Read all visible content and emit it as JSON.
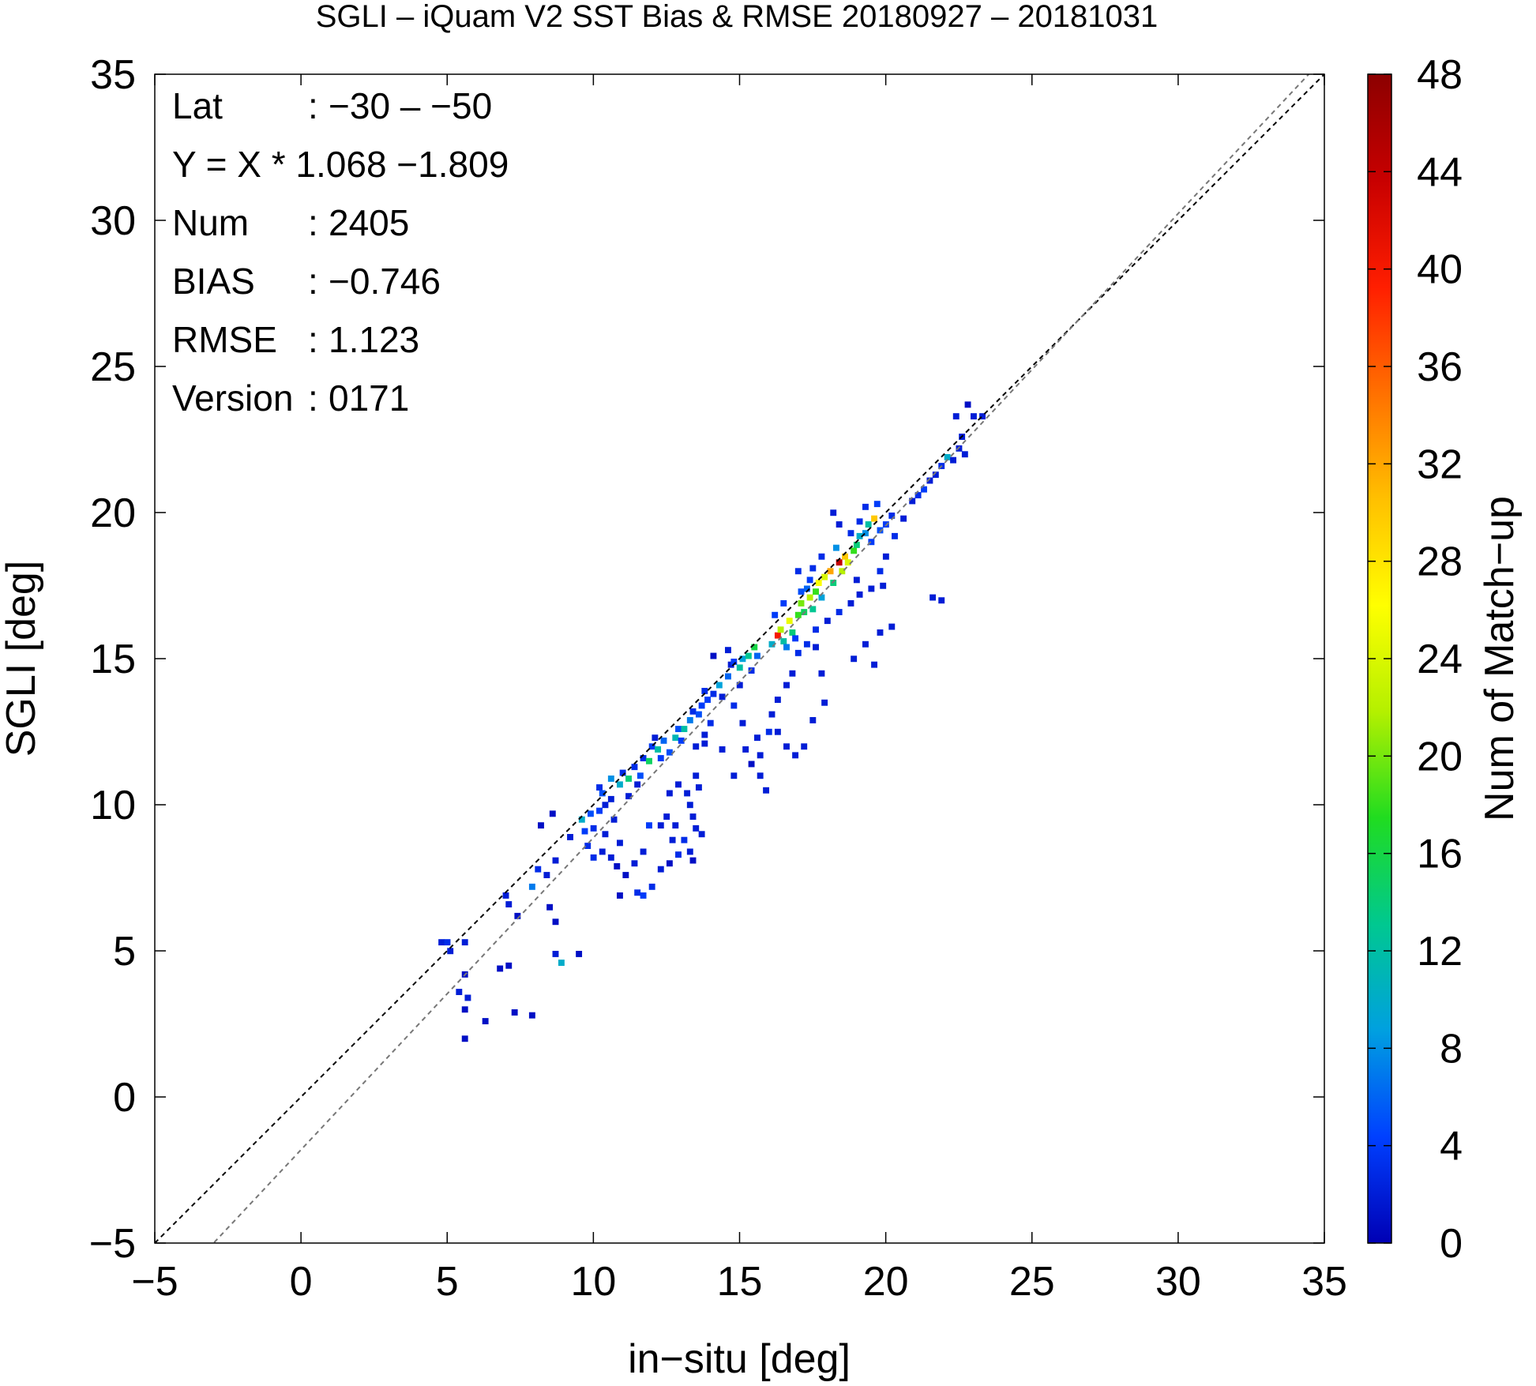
{
  "chart_data": {
    "type": "heatmap",
    "title": "SGLI – iQuam V2 SST Bias & RMSE 20180927 – 20181031",
    "xlabel": "in−situ [deg]",
    "ylabel": "SGLI [deg]",
    "xlim": [
      -5,
      35
    ],
    "ylim": [
      -5,
      35
    ],
    "xticks": [
      "−5",
      "0",
      "5",
      "10",
      "15",
      "20",
      "25",
      "30",
      "35"
    ],
    "yticks": [
      "−5",
      "0",
      "5",
      "10",
      "15",
      "20",
      "25",
      "30",
      "35"
    ],
    "grid": false,
    "reference_lines": [
      {
        "slope": 1.0,
        "intercept": 0.0,
        "color": "#000000",
        "style": "dashed"
      },
      {
        "slope": 1.068,
        "intercept": -1.809,
        "color": "#777777",
        "style": "dashed"
      }
    ],
    "colorbar": {
      "label": "Num of Match−up",
      "range": [
        0,
        48
      ],
      "ticks": [
        "0",
        "4",
        "8",
        "12",
        "16",
        "20",
        "24",
        "28",
        "32",
        "36",
        "40",
        "44",
        "48"
      ],
      "colormap": [
        "#0000b4",
        "#0040ff",
        "#00a0e0",
        "#00c890",
        "#20dc20",
        "#b4f000",
        "#ffff00",
        "#ffc000",
        "#ff7000",
        "#ff1e00",
        "#c80000",
        "#8c0000"
      ]
    },
    "stats": [
      {
        "key": "Lat",
        "sep": ":",
        "value": "−30 – −50"
      },
      {
        "key": "Y = X * 1.068 −1.809",
        "sep": "",
        "value": ""
      },
      {
        "key": "Num",
        "sep": ":",
        "value": "2405"
      },
      {
        "key": "BIAS",
        "sep": ":",
        "value": "−0.746"
      },
      {
        "key": "RMSE",
        "sep": ":",
        "value": "1.123"
      },
      {
        "key": "Version",
        "sep": ":",
        "value": "0171"
      }
    ],
    "cells": [
      [
        4.8,
        5.3,
        2
      ],
      [
        5.0,
        5.3,
        3
      ],
      [
        5.1,
        5.0,
        2
      ],
      [
        5.6,
        5.3,
        2
      ],
      [
        5.6,
        4.2,
        1
      ],
      [
        5.4,
        3.6,
        2
      ],
      [
        5.7,
        3.4,
        2
      ],
      [
        5.6,
        3.0,
        1
      ],
      [
        5.6,
        2.0,
        1
      ],
      [
        6.3,
        2.6,
        1
      ],
      [
        6.8,
        4.4,
        1
      ],
      [
        7.3,
        2.9,
        1
      ],
      [
        7.9,
        2.8,
        1
      ],
      [
        7.1,
        4.5,
        1
      ],
      [
        7.0,
        6.9,
        2
      ],
      [
        7.1,
        6.6,
        2
      ],
      [
        7.4,
        6.2,
        1
      ],
      [
        7.9,
        7.2,
        7
      ],
      [
        8.1,
        7.8,
        3
      ],
      [
        8.4,
        7.6,
        2
      ],
      [
        8.7,
        8.1,
        2
      ],
      [
        8.5,
        6.5,
        1
      ],
      [
        8.7,
        6.0,
        1
      ],
      [
        8.7,
        4.9,
        2
      ],
      [
        8.9,
        4.6,
        10
      ],
      [
        9.5,
        4.9,
        1
      ],
      [
        8.2,
        9.3,
        1
      ],
      [
        8.6,
        9.7,
        1
      ],
      [
        9.2,
        8.9,
        2
      ],
      [
        9.6,
        9.5,
        10
      ],
      [
        9.9,
        9.7,
        5
      ],
      [
        9.7,
        9.1,
        4
      ],
      [
        10.0,
        9.2,
        3
      ],
      [
        9.8,
        8.6,
        3
      ],
      [
        10.0,
        8.2,
        3
      ],
      [
        10.3,
        8.4,
        2
      ],
      [
        10.4,
        9.0,
        2
      ],
      [
        10.2,
        9.8,
        4
      ],
      [
        10.2,
        10.6,
        3
      ],
      [
        10.3,
        10.4,
        5
      ],
      [
        10.6,
        10.9,
        8
      ],
      [
        10.4,
        10.0,
        2
      ],
      [
        10.6,
        10.2,
        2
      ],
      [
        10.9,
        10.7,
        10
      ],
      [
        11.0,
        11.1,
        3
      ],
      [
        11.2,
        10.9,
        14
      ],
      [
        11.4,
        11.3,
        3
      ],
      [
        11.5,
        10.7,
        2
      ],
      [
        11.2,
        10.3,
        2
      ],
      [
        10.7,
        9.5,
        2
      ],
      [
        10.9,
        8.7,
        2
      ],
      [
        10.6,
        8.2,
        2
      ],
      [
        10.8,
        7.9,
        1
      ],
      [
        11.1,
        7.6,
        1
      ],
      [
        10.9,
        6.9,
        1
      ],
      [
        11.5,
        7.0,
        3
      ],
      [
        11.4,
        8.0,
        2
      ],
      [
        11.7,
        8.4,
        2
      ],
      [
        11.9,
        9.3,
        4
      ],
      [
        12.3,
        9.3,
        2
      ],
      [
        12.6,
        8.0,
        1
      ],
      [
        12.3,
        7.8,
        2
      ],
      [
        12.0,
        7.2,
        3
      ],
      [
        11.7,
        6.9,
        4
      ],
      [
        12.5,
        9.6,
        2
      ],
      [
        12.8,
        9.3,
        2
      ],
      [
        12.7,
        8.8,
        2
      ],
      [
        12.9,
        8.3,
        3
      ],
      [
        13.1,
        8.8,
        3
      ],
      [
        13.3,
        8.4,
        2
      ],
      [
        13.4,
        8.1,
        1
      ],
      [
        13.4,
        9.6,
        2
      ],
      [
        13.5,
        9.2,
        2
      ],
      [
        13.7,
        9.0,
        2
      ],
      [
        12.6,
        10.4,
        2
      ],
      [
        12.9,
        10.7,
        2
      ],
      [
        13.2,
        10.4,
        2
      ],
      [
        13.3,
        10.0,
        2
      ],
      [
        13.6,
        10.6,
        2
      ],
      [
        13.5,
        11.0,
        2
      ],
      [
        11.7,
        11.6,
        3
      ],
      [
        11.9,
        11.5,
        15
      ],
      [
        12.0,
        12.0,
        4
      ],
      [
        12.2,
        11.9,
        12
      ],
      [
        12.4,
        12.2,
        6
      ],
      [
        12.6,
        11.8,
        5
      ],
      [
        12.3,
        11.6,
        4
      ],
      [
        12.8,
        12.3,
        11
      ],
      [
        12.9,
        12.6,
        5
      ],
      [
        13.1,
        12.6,
        12
      ],
      [
        13.0,
        12.2,
        4
      ],
      [
        13.3,
        12.9,
        7
      ],
      [
        13.4,
        13.2,
        3
      ],
      [
        13.6,
        13.1,
        5
      ],
      [
        13.7,
        13.4,
        4
      ],
      [
        13.9,
        13.6,
        4
      ],
      [
        14.1,
        13.8,
        3
      ],
      [
        13.8,
        13.9,
        3
      ],
      [
        14.3,
        14.1,
        9
      ],
      [
        14.6,
        14.4,
        6
      ],
      [
        14.4,
        13.7,
        2
      ],
      [
        14.0,
        12.8,
        3
      ],
      [
        13.8,
        12.4,
        2
      ],
      [
        14.7,
        14.8,
        2
      ],
      [
        14.8,
        14.9,
        4
      ],
      [
        15.0,
        14.7,
        12
      ],
      [
        15.1,
        15.0,
        9
      ],
      [
        15.3,
        15.1,
        13
      ],
      [
        15.5,
        15.4,
        16
      ],
      [
        15.6,
        15.1,
        6
      ],
      [
        15.4,
        14.6,
        3
      ],
      [
        15.0,
        14.1,
        2
      ],
      [
        14.8,
        13.4,
        3
      ],
      [
        14.1,
        15.1,
        1
      ],
      [
        14.6,
        15.3,
        2
      ],
      [
        15.1,
        12.8,
        2
      ],
      [
        15.2,
        11.9,
        2
      ],
      [
        15.4,
        11.4,
        1
      ],
      [
        14.8,
        11.0,
        2
      ],
      [
        15.7,
        11.7,
        2
      ],
      [
        15.7,
        11.0,
        2
      ],
      [
        15.9,
        10.5,
        2
      ],
      [
        15.6,
        12.3,
        2
      ],
      [
        16.0,
        12.5,
        3
      ],
      [
        16.1,
        13.1,
        2
      ],
      [
        16.3,
        13.6,
        2
      ],
      [
        16.6,
        14.1,
        2
      ],
      [
        16.8,
        14.5,
        2
      ],
      [
        16.3,
        12.5,
        2
      ],
      [
        16.6,
        12.0,
        2
      ],
      [
        16.9,
        11.7,
        2
      ],
      [
        17.2,
        12.0,
        2
      ],
      [
        17.5,
        12.9,
        2
      ],
      [
        17.9,
        13.5,
        2
      ],
      [
        17.8,
        14.5,
        2
      ],
      [
        16.1,
        15.5,
        10
      ],
      [
        16.3,
        15.8,
        40
      ],
      [
        16.4,
        16.0,
        22
      ],
      [
        16.5,
        15.6,
        12
      ],
      [
        16.7,
        16.3,
        25
      ],
      [
        16.8,
        15.9,
        14
      ],
      [
        16.6,
        15.4,
        7
      ],
      [
        16.2,
        16.5,
        4
      ],
      [
        16.5,
        16.9,
        4
      ],
      [
        17.0,
        16.5,
        18
      ],
      [
        17.1,
        16.9,
        20
      ],
      [
        17.2,
        16.6,
        15
      ],
      [
        17.4,
        17.1,
        22
      ],
      [
        17.5,
        16.7,
        13
      ],
      [
        17.6,
        17.3,
        18
      ],
      [
        17.3,
        17.4,
        6
      ],
      [
        17.7,
        17.6,
        26
      ],
      [
        17.9,
        17.8,
        24
      ],
      [
        17.8,
        17.1,
        9
      ],
      [
        18.1,
        18.0,
        32
      ],
      [
        18.2,
        17.6,
        14
      ],
      [
        18.4,
        18.3,
        44
      ],
      [
        18.5,
        18.0,
        22
      ],
      [
        18.6,
        18.5,
        30
      ],
      [
        18.7,
        18.3,
        24
      ],
      [
        18.3,
        18.8,
        8
      ],
      [
        18.9,
        18.7,
        18
      ],
      [
        19.0,
        18.9,
        14
      ],
      [
        19.1,
        19.2,
        10
      ],
      [
        19.3,
        19.3,
        8
      ],
      [
        19.4,
        19.6,
        12
      ],
      [
        19.6,
        19.8,
        30
      ],
      [
        19.5,
        19.0,
        4
      ],
      [
        19.8,
        19.4,
        5
      ],
      [
        20.0,
        19.6,
        4
      ],
      [
        20.2,
        19.9,
        3
      ],
      [
        19.7,
        20.3,
        4
      ],
      [
        19.3,
        20.2,
        3
      ],
      [
        19.1,
        19.7,
        3
      ],
      [
        18.8,
        19.3,
        3
      ],
      [
        18.4,
        19.6,
        2
      ],
      [
        18.2,
        20.0,
        2
      ],
      [
        17.8,
        18.5,
        3
      ],
      [
        17.5,
        18.1,
        3
      ],
      [
        17.4,
        17.7,
        4
      ],
      [
        17.1,
        17.3,
        5
      ],
      [
        17.0,
        18.0,
        3
      ],
      [
        16.9,
        15.7,
        4
      ],
      [
        17.0,
        15.2,
        3
      ],
      [
        17.3,
        15.5,
        3
      ],
      [
        17.6,
        15.4,
        2
      ],
      [
        17.6,
        16.0,
        3
      ],
      [
        18.0,
        16.3,
        2
      ],
      [
        18.4,
        16.6,
        3
      ],
      [
        18.8,
        16.9,
        2
      ],
      [
        19.1,
        17.2,
        2
      ],
      [
        19.0,
        17.7,
        2
      ],
      [
        19.5,
        17.4,
        2
      ],
      [
        19.9,
        17.5,
        2
      ],
      [
        18.9,
        15.0,
        2
      ],
      [
        19.3,
        15.5,
        2
      ],
      [
        19.8,
        15.9,
        2
      ],
      [
        20.2,
        16.1,
        2
      ],
      [
        19.6,
        14.8,
        2
      ],
      [
        19.8,
        18.0,
        3
      ],
      [
        20.0,
        18.5,
        2
      ],
      [
        20.3,
        19.2,
        3
      ],
      [
        20.6,
        19.8,
        2
      ],
      [
        20.9,
        20.4,
        2
      ],
      [
        21.1,
        20.6,
        3
      ],
      [
        21.3,
        20.8,
        4
      ],
      [
        21.5,
        21.1,
        2
      ],
      [
        21.7,
        21.3,
        2
      ],
      [
        21.9,
        21.6,
        3
      ],
      [
        22.1,
        21.9,
        10
      ],
      [
        22.3,
        21.8,
        2
      ],
      [
        22.5,
        22.2,
        2
      ],
      [
        22.7,
        22.0,
        2
      ],
      [
        22.6,
        22.6,
        2
      ],
      [
        22.4,
        23.3,
        2
      ],
      [
        22.8,
        23.7,
        1
      ],
      [
        23.0,
        23.3,
        2
      ],
      [
        23.3,
        23.3,
        2
      ],
      [
        21.6,
        17.1,
        2
      ],
      [
        21.9,
        17.0,
        2
      ],
      [
        12.1,
        12.3,
        2
      ],
      [
        11.6,
        11.0,
        5
      ],
      [
        13.5,
        12.0,
        2
      ],
      [
        13.8,
        12.1,
        2
      ],
      [
        14.4,
        11.9,
        2
      ]
    ]
  }
}
